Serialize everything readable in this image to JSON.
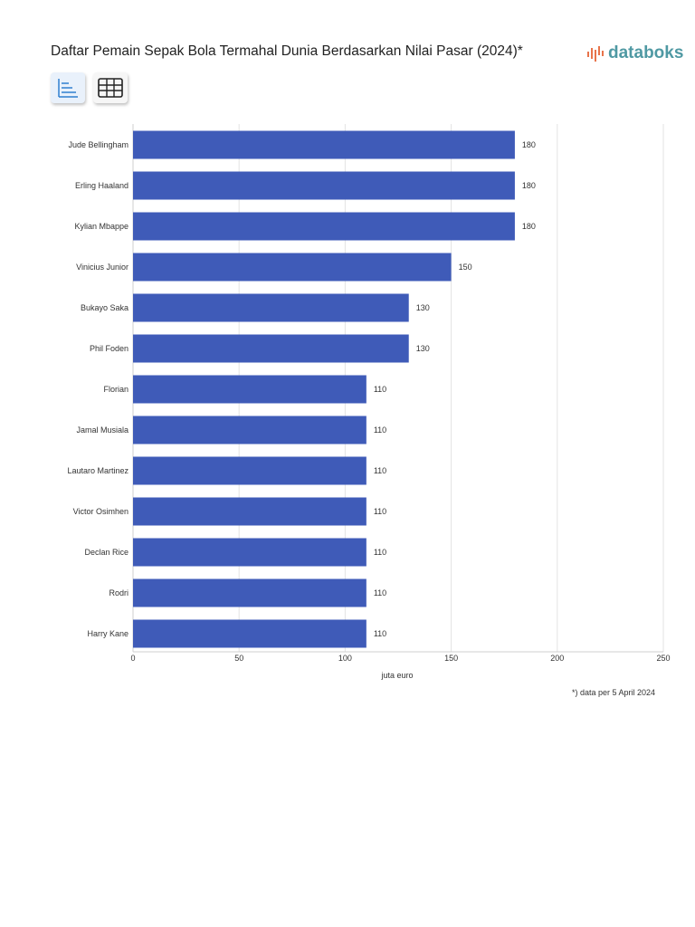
{
  "header": {
    "title": "Daftar Pemain Sepak Bola Termahal Dunia Berdasarkan Nilai Pasar (2024)*",
    "logo_text": "databoks"
  },
  "toolbar": {
    "chart_view_icon": "bar-chart-icon",
    "table_view_icon": "table-grid-icon"
  },
  "footnote": "*) data per 5 April 2024",
  "colors": {
    "bar": "#3f5bb8",
    "grid": "#e3e3e3",
    "logo": "#4f99a3"
  },
  "chart_data": {
    "type": "bar",
    "orientation": "horizontal",
    "categories": [
      "Jude Bellingham",
      "Erling Haaland",
      "Kylian Mbappe",
      "Vinicius Junior",
      "Bukayo Saka",
      "Phil Foden",
      "Florian",
      "Jamal Musiala",
      "Lautaro Martinez",
      "Victor Osimhen",
      "Declan Rice",
      "Rodri",
      "Harry Kane"
    ],
    "values": [
      180,
      180,
      180,
      150,
      130,
      130,
      110,
      110,
      110,
      110,
      110,
      110,
      110
    ],
    "data_labels": [
      "180",
      "180",
      "180",
      "150",
      "130",
      "130",
      "110",
      "110",
      "110",
      "110",
      "110",
      "110",
      "110"
    ],
    "x_ticks": [
      0,
      50,
      100,
      150,
      200,
      250
    ],
    "xlim": [
      0,
      250
    ],
    "xlabel": "juta euro",
    "grid": true,
    "legend": "none"
  }
}
